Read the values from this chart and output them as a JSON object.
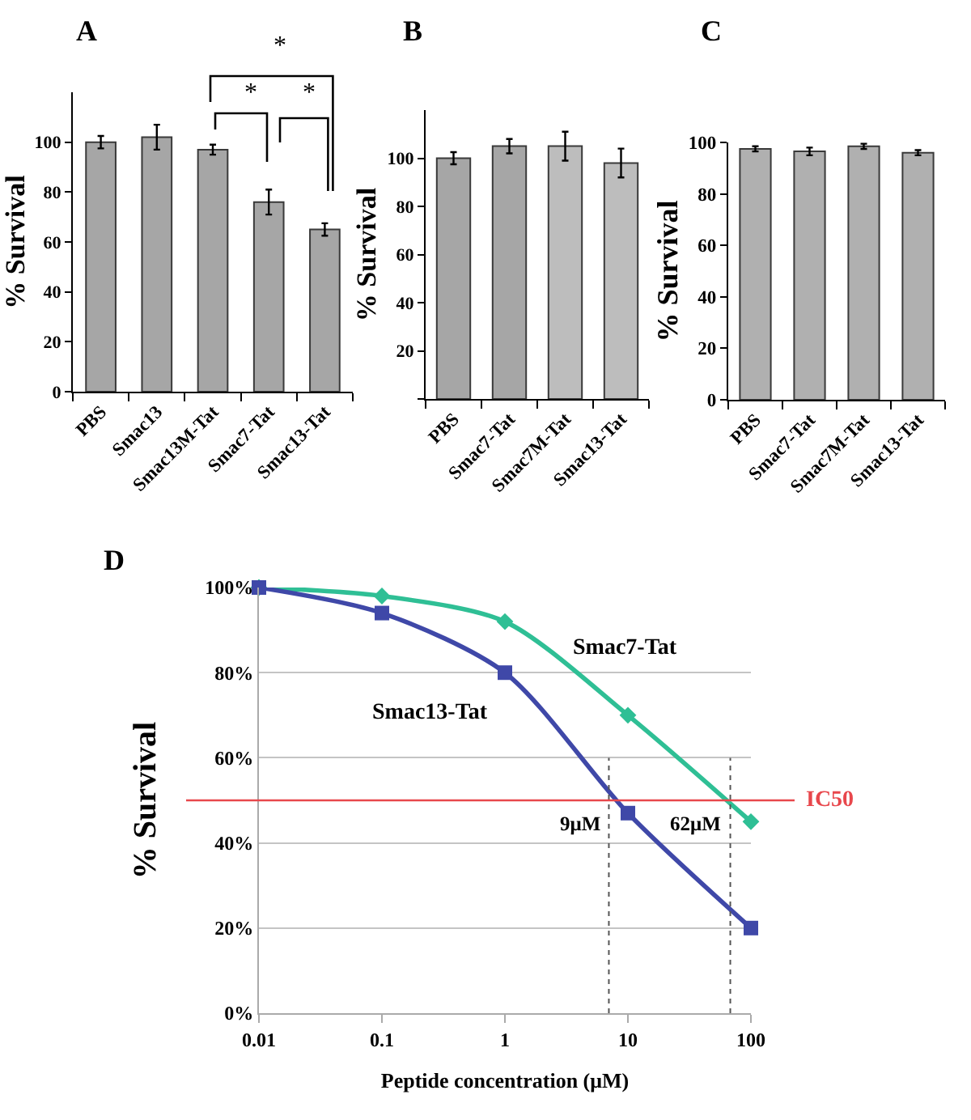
{
  "chart_data": [
    {
      "type": "bar",
      "title": "A",
      "ylabel": "% Survival",
      "categories": [
        "PBS",
        "Smac13",
        "Smac13M-Tat",
        "Smac7-Tat",
        "Smac13-Tat"
      ],
      "values": [
        100,
        102,
        97,
        76,
        65
      ],
      "errors": [
        2.5,
        5,
        2,
        5,
        2.5
      ],
      "color": "#a6a6a6",
      "ylim": [
        0,
        120
      ],
      "yticks": [
        0,
        20,
        40,
        60,
        80,
        100
      ],
      "annotations": [
        "*",
        "*",
        "*"
      ]
    },
    {
      "type": "bar",
      "title": "B",
      "ylabel": "% Survival",
      "categories": [
        "PBS",
        "Smac7-Tat",
        "Smac7M-Tat",
        "Smac13-Tat"
      ],
      "values": [
        100,
        105,
        105,
        98
      ],
      "errors": [
        2.5,
        3,
        6,
        6
      ],
      "colors": [
        "#a6a6a6",
        "#a6a6a6",
        "#bdbdbd",
        "#bdbdbd"
      ],
      "ylim": [
        0,
        120
      ],
      "yticks": [
        {
          "value": 0,
          "label": null
        },
        20,
        40,
        60,
        80,
        100
      ]
    },
    {
      "type": "bar",
      "title": "C",
      "ylabel": "% Survival",
      "categories": [
        "PBS",
        "Smac7-Tat",
        "Smac7M-Tat",
        "Smac13-Tat"
      ],
      "values": [
        97.5,
        96.5,
        98.5,
        96
      ],
      "errors": [
        1,
        1.5,
        1,
        1
      ],
      "color": "#b0b0b0",
      "ylim": [
        0,
        100
      ],
      "yticks": [
        0,
        20,
        40,
        60,
        80,
        100
      ]
    },
    {
      "type": "line",
      "title": "D",
      "xlabel": "Peptide concentration (μM)",
      "ylabel": "% Survival",
      "x": [
        0.01,
        0.1,
        1,
        10,
        100
      ],
      "log": "x",
      "xlim": [
        0.01,
        100
      ],
      "xticks": [
        0.01,
        0.1,
        1,
        10,
        100
      ],
      "ylim": [
        0,
        100
      ],
      "yticks": [
        {
          "value": 0,
          "label": "0%"
        },
        {
          "value": 20,
          "label": "20%"
        },
        {
          "value": 40,
          "label": "40%"
        },
        {
          "value": 60,
          "label": "60%"
        },
        {
          "value": 80,
          "label": "80%"
        },
        {
          "value": 100,
          "label": "100%"
        }
      ],
      "grid": "y",
      "series": [
        {
          "name": "Smac7-Tat",
          "color": "#2fbf95",
          "values": [
            100,
            98,
            92,
            70,
            45
          ],
          "marker": "diamond"
        },
        {
          "name": "Smac13-Tat",
          "color": "#3f48a8",
          "values": [
            100,
            94,
            80,
            47,
            20
          ],
          "marker": "square"
        }
      ],
      "ref_lines": [
        {
          "axis": "y",
          "value": 50,
          "label": "IC50",
          "color": "#e8474c"
        },
        {
          "axis": "x",
          "value": 7,
          "label": "9μM",
          "line_style": "dotted",
          "color": "#555555"
        },
        {
          "axis": "x",
          "value": 68,
          "label": "62μM",
          "line_style": "dotted",
          "color": "#555555"
        }
      ]
    }
  ]
}
